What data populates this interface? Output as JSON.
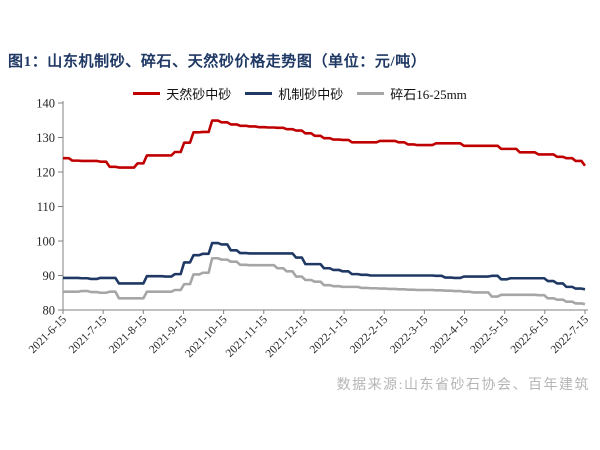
{
  "figure": {
    "title": "图1：山东机制砂、碎石、天然砂价格走势图（单位：元/吨）",
    "source_note": "数据来源:山东省砂石协会、百年建筑"
  },
  "colors": {
    "title": "#1f3864",
    "axis": "#808080",
    "tick_label": "#262626",
    "source_note": "#b5b5b5",
    "background": "#ffffff"
  },
  "chart_data": {
    "type": "line",
    "title": "图1：山东机制砂、碎石、天然砂价格走势图（单位：元/吨）",
    "unit": "元/吨",
    "grid": false,
    "legend_position": "top-center",
    "ylim": [
      80,
      140
    ],
    "y_ticks": [
      80,
      90,
      100,
      110,
      120,
      130,
      140
    ],
    "x_tick_labels": [
      "2021-6-15",
      "2021-7-15",
      "2021-8-15",
      "2021-9-15",
      "2021-10-15",
      "2021-11-15",
      "2021-12-15",
      "2022-1-15",
      "2022-2-15",
      "2022-3-15",
      "2022-4-15",
      "2022-5-15",
      "2022-6-15",
      "2022-7-15"
    ],
    "series": [
      {
        "name": "天然砂中砂",
        "color": "#c00000",
        "values": [
          124.0,
          123.3,
          123.2,
          123.2,
          123.0,
          121.5,
          121.3,
          121.3,
          122.5,
          124.8,
          124.8,
          124.8,
          125.8,
          128.5,
          131.5,
          131.6,
          134.9,
          134.4,
          133.8,
          133.4,
          133.2,
          133.0,
          132.9,
          132.8,
          132.4,
          132.0,
          131.2,
          130.5,
          129.8,
          129.4,
          129.3,
          128.6,
          128.6,
          128.6,
          129.0,
          129.0,
          128.6,
          128.0,
          127.8,
          127.8,
          128.3,
          128.3,
          128.3,
          127.6,
          127.6,
          127.6,
          127.6,
          126.7,
          126.7,
          125.7,
          125.7,
          125.1,
          125.1,
          124.4,
          124.0,
          123.2,
          121.8
        ]
      },
      {
        "name": "机制砂中砂",
        "color": "#1f3864",
        "values": [
          89.3,
          89.3,
          89.2,
          89.0,
          89.3,
          89.3,
          87.7,
          87.7,
          87.7,
          89.8,
          89.8,
          89.7,
          90.4,
          93.8,
          95.9,
          96.3,
          99.4,
          99.0,
          97.3,
          96.5,
          96.4,
          96.4,
          96.4,
          96.4,
          96.4,
          95.2,
          93.3,
          93.3,
          92.1,
          91.6,
          91.2,
          90.4,
          90.2,
          90.0,
          90.0,
          90.0,
          90.0,
          90.0,
          90.0,
          90.0,
          89.9,
          89.4,
          89.3,
          89.7,
          89.7,
          89.7,
          89.9,
          88.9,
          89.2,
          89.2,
          89.2,
          89.2,
          88.4,
          87.7,
          86.7,
          86.2,
          86.0
        ]
      },
      {
        "name": "碎石16-25mm",
        "color": "#a6a6a6",
        "values": [
          85.3,
          85.3,
          85.5,
          85.2,
          85.0,
          85.3,
          83.4,
          83.4,
          83.4,
          85.3,
          85.3,
          85.3,
          85.8,
          87.5,
          90.3,
          90.8,
          95.0,
          94.6,
          94.0,
          93.1,
          93.0,
          93.0,
          93.0,
          92.1,
          91.2,
          89.7,
          88.7,
          88.2,
          87.2,
          86.9,
          86.7,
          86.7,
          86.4,
          86.3,
          86.2,
          86.1,
          86.0,
          85.9,
          85.8,
          85.8,
          85.7,
          85.6,
          85.5,
          85.3,
          85.1,
          85.1,
          83.9,
          84.4,
          84.4,
          84.4,
          84.4,
          84.3,
          83.4,
          83.0,
          82.4,
          81.9,
          81.7
        ]
      }
    ]
  }
}
